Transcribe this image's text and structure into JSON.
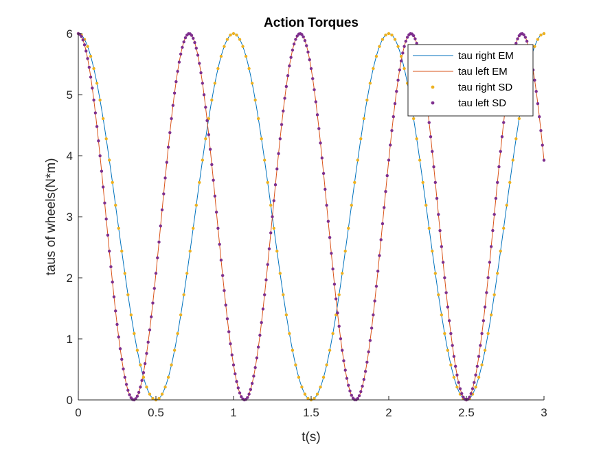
{
  "chart_data": {
    "type": "line",
    "title": "Action Torques",
    "xlabel": "t(s)",
    "ylabel": "taus of wheels(N*m)",
    "xlim": [
      0,
      3
    ],
    "ylim": [
      0,
      6
    ],
    "x_ticks": [
      0,
      0.5,
      1,
      1.5,
      2,
      2.5,
      3
    ],
    "x_tick_labels": [
      "0",
      "0.5",
      "1",
      "1.5",
      "2",
      "2.5",
      "3"
    ],
    "y_ticks": [
      0,
      1,
      2,
      3,
      4,
      5,
      6
    ],
    "y_tick_labels": [
      "0",
      "1",
      "2",
      "3",
      "4",
      "5",
      "6"
    ],
    "grid": false,
    "legend_position": "top-right",
    "series": [
      {
        "name": "tau right EM",
        "style": "line",
        "color": "#0072BD",
        "amplitude": 3,
        "offset": 3,
        "omega": 6.2832,
        "phase": 0,
        "t_range": [
          0,
          3
        ]
      },
      {
        "name": "tau left EM",
        "style": "line",
        "color": "#D95319",
        "amplitude": 3,
        "offset": 3,
        "omega": 8.7965,
        "phase": 0,
        "t_range": [
          0,
          3
        ]
      },
      {
        "name": "tau right SD",
        "style": "markers",
        "color": "#EDB120",
        "amplitude": 3,
        "offset": 3,
        "omega": 6.2832,
        "phase": 0,
        "t_range": [
          0,
          3
        ],
        "sample_step": 0.02
      },
      {
        "name": "tau left SD",
        "style": "markers",
        "color": "#7E2F8E",
        "amplitude": 3,
        "offset": 3,
        "omega": 8.7965,
        "phase": 0,
        "t_range": [
          0,
          3
        ],
        "sample_step": 0.01
      }
    ]
  }
}
